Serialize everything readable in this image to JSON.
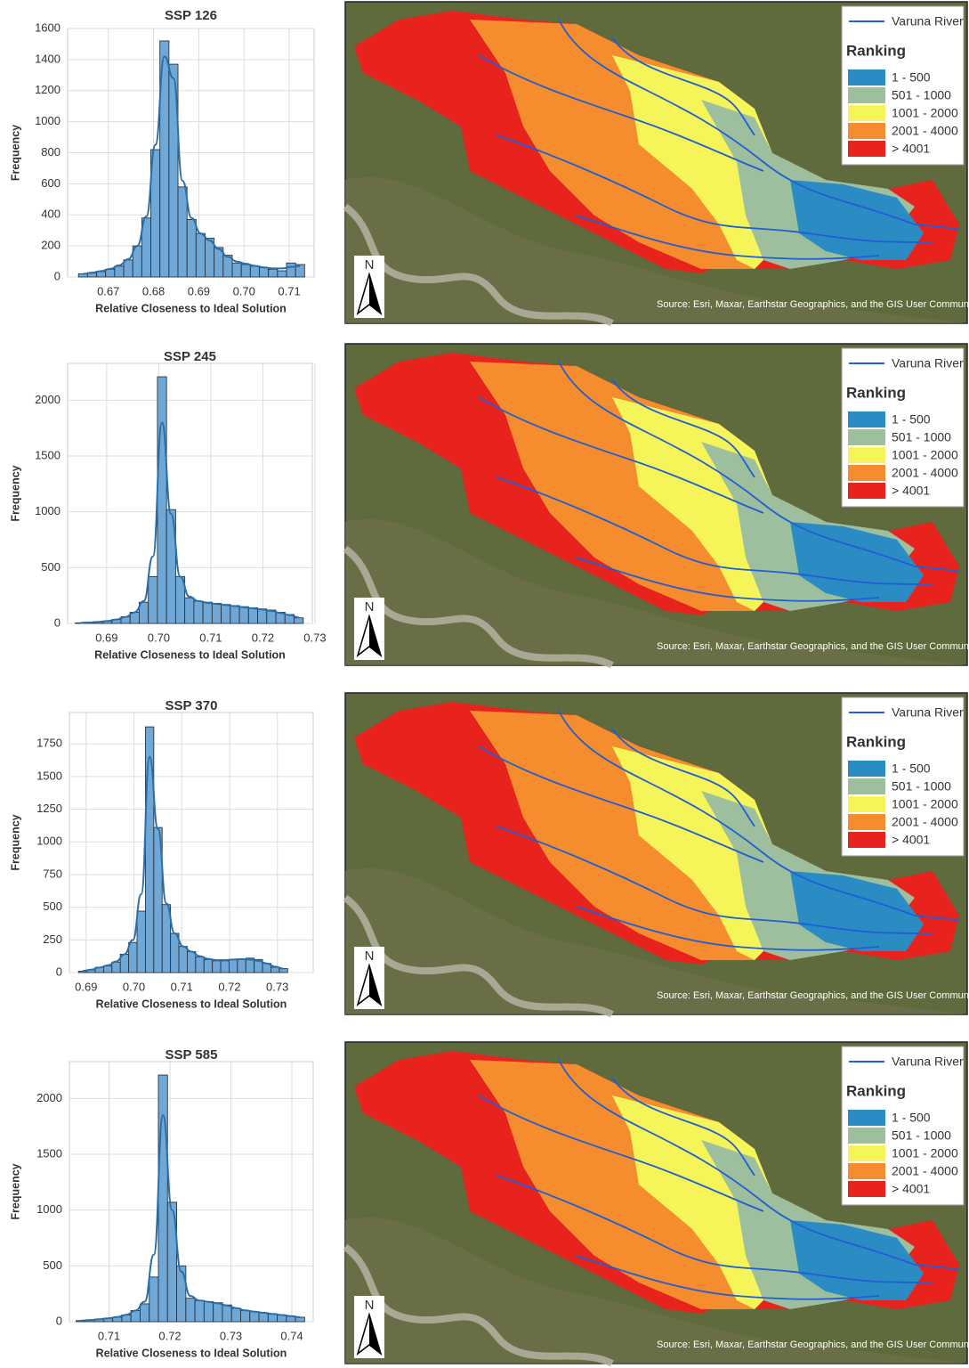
{
  "chart_data": [
    {
      "type": "histogram",
      "title": "SSP 126",
      "x_label": "Relative Closeness to Ideal Solution",
      "y_label": "Frequency",
      "bins": [
        0.6634,
        0.6654,
        0.6674,
        0.6694,
        0.6714,
        0.6734,
        0.6754,
        0.6774,
        0.6794,
        0.6814,
        0.6834,
        0.6854,
        0.6874,
        0.6894,
        0.6914,
        0.6934,
        0.6954,
        0.6974,
        0.6994,
        0.7014,
        0.7034,
        0.7054,
        0.7074,
        0.7094,
        0.7114,
        0.7134
      ],
      "counts": [
        20,
        25,
        35,
        50,
        70,
        110,
        200,
        380,
        820,
        1520,
        1370,
        580,
        370,
        280,
        250,
        190,
        140,
        90,
        80,
        70,
        60,
        50,
        40,
        90,
        80
      ],
      "kde": [
        20,
        28,
        38,
        52,
        75,
        115,
        200,
        390,
        850,
        1420,
        1280,
        620,
        380,
        280,
        235,
        180,
        130,
        100,
        85,
        72,
        62,
        55,
        55,
        65,
        70
      ],
      "color": "#6fa8d6",
      "line_color": "#2a6fa8",
      "xlim": [
        0.661,
        0.7155
      ],
      "xticks": [
        0.67,
        0.68,
        0.69,
        {
          "value": 0.7,
          "label": "0.70"
        },
        0.71
      ],
      "ylim": [
        0,
        1600
      ],
      "yticks": [
        0,
        200,
        400,
        600,
        800,
        1000,
        1200,
        1400,
        1600
      ],
      "grid": true
    },
    {
      "type": "histogram",
      "title": "SSP 245",
      "x_label": "Relative Closeness to Ideal Solution",
      "y_label": "Frequency",
      "bins": [
        0.684,
        0.68575,
        0.6875,
        0.68925,
        0.691,
        0.69275,
        0.6945,
        0.69625,
        0.698,
        0.69975,
        0.7015,
        0.70325,
        0.705,
        0.70675,
        0.7085,
        0.71025,
        0.712,
        0.71375,
        0.7155,
        0.71725,
        0.719,
        0.72075,
        0.7225,
        0.72425,
        0.726,
        0.72775
      ],
      "counts": [
        5,
        10,
        15,
        20,
        35,
        60,
        100,
        190,
        420,
        2210,
        1020,
        420,
        230,
        200,
        190,
        180,
        170,
        160,
        150,
        140,
        130,
        120,
        100,
        80,
        50
      ],
      "kde": [
        5,
        9,
        14,
        22,
        35,
        58,
        100,
        200,
        600,
        1800,
        980,
        420,
        240,
        200,
        185,
        175,
        165,
        155,
        145,
        135,
        125,
        112,
        95,
        75,
        55
      ],
      "color": "#6fa8d6",
      "line_color": "#2a6fa8",
      "xlim": [
        0.6825,
        0.7295
      ],
      "xticks": [
        0.69,
        {
          "value": 0.7,
          "label": "0.70"
        },
        0.71,
        0.72,
        0.73
      ],
      "ylim": [
        0,
        2330
      ],
      "yticks": [
        0,
        500,
        1000,
        1500,
        2000
      ],
      "grid": true
    },
    {
      "type": "histogram",
      "title": "SSP 370",
      "x_label": "Relative Closeness to Ideal Solution",
      "y_label": "Frequency",
      "bins": [
        0.6884,
        0.69015,
        0.6919,
        0.69365,
        0.6954,
        0.69715,
        0.6989,
        0.70065,
        0.7024,
        0.70415,
        0.7059,
        0.70765,
        0.7094,
        0.71115,
        0.7129,
        0.71465,
        0.7164,
        0.71815,
        0.7199,
        0.72165,
        0.7234,
        0.72515,
        0.7269,
        0.72865,
        0.7304,
        0.73215
      ],
      "counts": [
        10,
        20,
        40,
        50,
        80,
        140,
        230,
        470,
        1880,
        1110,
        520,
        300,
        200,
        160,
        120,
        100,
        90,
        90,
        100,
        100,
        110,
        100,
        70,
        40,
        30
      ],
      "kde": [
        12,
        22,
        38,
        55,
        85,
        140,
        250,
        600,
        1650,
        1100,
        530,
        300,
        200,
        160,
        125,
        105,
        95,
        95,
        100,
        102,
        100,
        90,
        70,
        45,
        30
      ],
      "color": "#6fa8d6",
      "line_color": "#2a6fa8",
      "xlim": [
        0.6865,
        0.7375
      ],
      "xticks": [
        0.69,
        {
          "value": 0.7,
          "label": "0.70"
        },
        0.71,
        0.72,
        0.73
      ],
      "ylim": [
        0,
        1990
      ],
      "yticks": [
        0,
        250,
        500,
        750,
        1000,
        1250,
        1500,
        1750
      ],
      "grid": true
    },
    {
      "type": "histogram",
      "title": "SSP 585",
      "x_label": "Relative Closeness to Ideal Solution",
      "y_label": "Frequency",
      "bins": [
        0.7046,
        0.7061,
        0.7076,
        0.7091,
        0.7106,
        0.7121,
        0.7136,
        0.7151,
        0.7166,
        0.7181,
        0.7196,
        0.7211,
        0.7226,
        0.7241,
        0.7256,
        0.7271,
        0.7286,
        0.7301,
        0.7316,
        0.7331,
        0.7346,
        0.7361,
        0.7376,
        0.7391,
        0.7406,
        0.7421
      ],
      "counts": [
        10,
        15,
        20,
        30,
        40,
        60,
        100,
        160,
        400,
        2210,
        1070,
        500,
        210,
        190,
        180,
        170,
        150,
        120,
        100,
        90,
        80,
        70,
        60,
        50,
        40
      ],
      "kde": [
        10,
        15,
        22,
        30,
        42,
        62,
        100,
        180,
        600,
        1850,
        1000,
        450,
        230,
        190,
        178,
        165,
        145,
        122,
        102,
        90,
        80,
        70,
        60,
        50,
        40
      ],
      "color": "#6fa8d6",
      "line_color": "#2a6fa8",
      "xlim": [
        0.7035,
        0.7435
      ],
      "xticks": [
        0.71,
        0.72,
        0.73,
        0.74
      ],
      "ylim": [
        0,
        2330
      ],
      "yticks": [
        0,
        500,
        1000,
        1500,
        2000
      ],
      "grid": true
    }
  ],
  "maps": [
    {
      "river": "Varuna River",
      "legend_title": "Ranking",
      "classes": [
        "1 - 500",
        "501 - 1000",
        "1001 - 2000",
        "2001 - 4000",
        "> 4001"
      ],
      "class_colors": [
        "#2b8cc4",
        "#9dbf9e",
        "#f5f55a",
        "#f58c2e",
        "#e8231d"
      ],
      "north": "N",
      "source": "Source: Esri, Maxar, Earthstar Geographics, and the GIS User Community"
    },
    {
      "river": "Varuna River",
      "legend_title": "Ranking",
      "classes": [
        "1 - 500",
        "501 - 1000",
        "1001 - 2000",
        "2001 - 4000",
        "> 4001"
      ],
      "class_colors": [
        "#2b8cc4",
        "#9dbf9e",
        "#f5f55a",
        "#f58c2e",
        "#e8231d"
      ],
      "north": "N",
      "source": "Source: Esri, Maxar, Earthstar Geographics, and the GIS User Community"
    },
    {
      "river": "Varuna River",
      "legend_title": "Ranking",
      "classes": [
        "1 - 500",
        "501 - 1000",
        "1001 - 2000",
        "2001 - 4000",
        "> 4001"
      ],
      "class_colors": [
        "#2b8cc4",
        "#9dbf9e",
        "#f5f55a",
        "#f58c2e",
        "#e8231d"
      ],
      "north": "N",
      "source": "Source: Esri, Maxar, Earthstar Geographics, and the GIS User Community"
    },
    {
      "river": "Varuna River",
      "legend_title": "Ranking",
      "classes": [
        "1 - 500",
        "501 - 1000",
        "1001 - 2000",
        "2001 - 4000",
        "> 4001"
      ],
      "class_colors": [
        "#2b8cc4",
        "#9dbf9e",
        "#f5f55a",
        "#f58c2e",
        "#e8231d"
      ],
      "north": "N",
      "source": "Source: Esri, Maxar, Earthstar Geographics, and the GIS User Community"
    }
  ]
}
